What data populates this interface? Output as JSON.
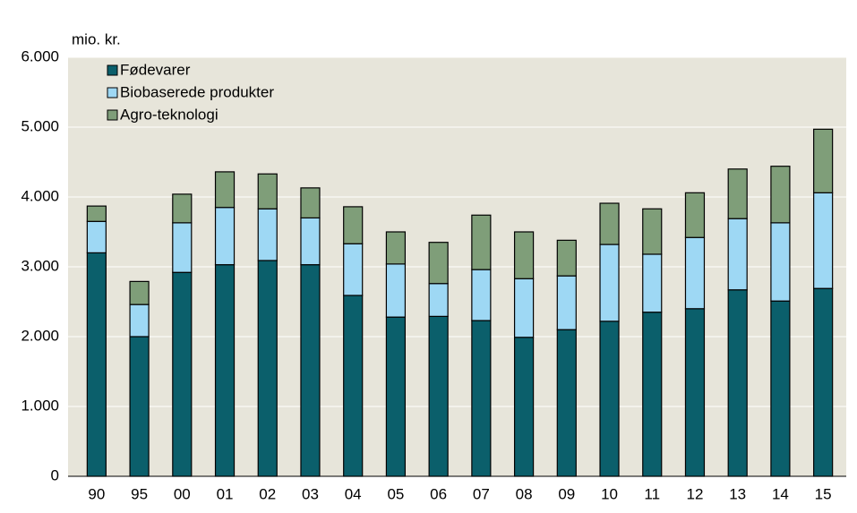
{
  "chart_data": {
    "type": "stacked_bar",
    "y_label": "mio. kr.",
    "categories": [
      "90",
      "95",
      "00",
      "01",
      "02",
      "03",
      "04",
      "05",
      "06",
      "07",
      "08",
      "09",
      "10",
      "11",
      "12",
      "13",
      "14",
      "15"
    ],
    "series": [
      {
        "name": "Fødevarer",
        "color": "#0b5f6b",
        "values": [
          3200,
          2000,
          2920,
          3030,
          3090,
          3030,
          2590,
          2280,
          2290,
          2230,
          1990,
          2100,
          2220,
          2350,
          2400,
          2670,
          2510,
          2690
        ]
      },
      {
        "name": "Biobaserede produkter",
        "color": "#9ed8f4",
        "values": [
          450,
          460,
          710,
          820,
          740,
          670,
          740,
          760,
          470,
          730,
          840,
          770,
          1100,
          830,
          1020,
          1020,
          1120,
          1370
        ]
      },
      {
        "name": "Agro-teknologi",
        "color": "#7f9e79",
        "values": [
          220,
          330,
          410,
          510,
          500,
          430,
          530,
          460,
          590,
          780,
          670,
          510,
          590,
          650,
          640,
          710,
          810,
          910
        ]
      }
    ],
    "ylim": [
      0,
      6000
    ],
    "yticks": [
      0,
      {
        "value": 1000,
        "label": "1.000"
      },
      {
        "value": 2000,
        "label": "2.000"
      },
      {
        "value": 3000,
        "label": "3.000"
      },
      {
        "value": 4000,
        "label": "4.000"
      },
      {
        "value": 5000,
        "label": "5.000"
      },
      {
        "value": 6000,
        "label": "6.000"
      }
    ],
    "grid": true,
    "legend": "upper-left"
  }
}
